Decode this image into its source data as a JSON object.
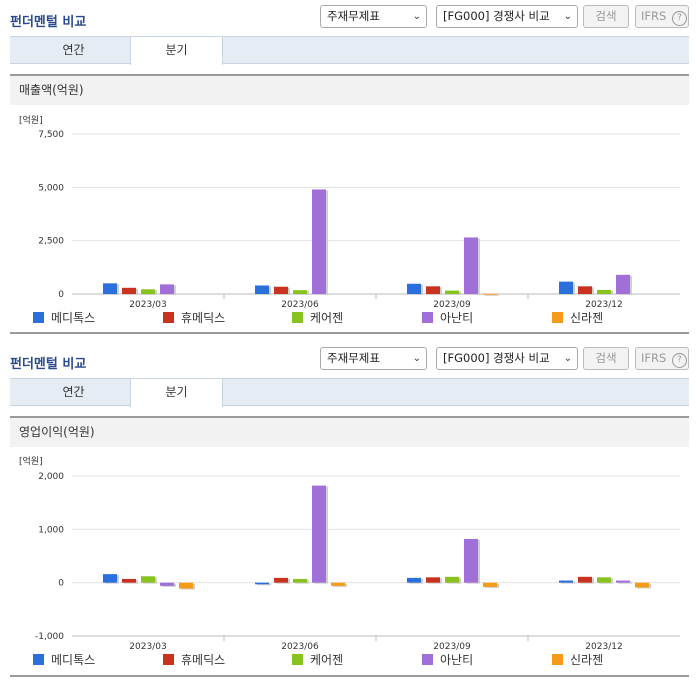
{
  "colors": {
    "series": [
      "#2a6fdb",
      "#c8321e",
      "#87c21f",
      "#a06fd8",
      "#f39c1a"
    ],
    "grid": "#e3e3e3",
    "title": "#2b4a8b"
  },
  "panels": [
    {
      "title": "펀더멘털 비교",
      "select1": "주재무제표",
      "select2": "[FG000] 경쟁사 비교",
      "search_button": "검색",
      "ifrs_button": "IFRS",
      "help_icon": "?",
      "tabs": [
        "연간",
        "분기"
      ],
      "active_tab": 1,
      "subtitle": "매출액(억원)",
      "unit_label": "[억원]",
      "legend": [
        "메디톡스",
        "휴메딕스",
        "케어젠",
        "아난티",
        "신라젠"
      ]
    },
    {
      "title": "펀더멘털 비교",
      "select1": "주재무제표",
      "select2": "[FG000] 경쟁사 비교",
      "search_button": "검색",
      "ifrs_button": "IFRS",
      "help_icon": "?",
      "tabs": [
        "연간",
        "분기"
      ],
      "active_tab": 1,
      "subtitle": "영업이익(억원)",
      "unit_label": "[억원]",
      "legend": [
        "메디톡스",
        "휴메딕스",
        "케어젠",
        "아난티",
        "신라젠"
      ]
    }
  ],
  "chart_data": [
    {
      "type": "bar",
      "ylabel": "[억원]",
      "ylim": [
        0,
        7500
      ],
      "yticks": [
        0,
        2500,
        5000,
        7500
      ],
      "ytick_labels": [
        "0",
        "2,500",
        "5,000",
        "7,500"
      ],
      "categories": [
        "2023/03",
        "2023/06",
        "2023/09",
        "2023/12"
      ],
      "series": [
        {
          "name": "메디톡스",
          "values": [
            500,
            400,
            480,
            580
          ]
        },
        {
          "name": "휴메딕스",
          "values": [
            290,
            340,
            360,
            360
          ]
        },
        {
          "name": "케어젠",
          "values": [
            220,
            180,
            160,
            190
          ]
        },
        {
          "name": "아난티",
          "values": [
            450,
            4900,
            2650,
            900
          ]
        },
        {
          "name": "신라젠",
          "values": [
            0,
            0,
            10,
            0
          ]
        }
      ],
      "legend_position": "bottom"
    },
    {
      "type": "bar",
      "ylabel": "[억원]",
      "ylim": [
        -1000,
        2000
      ],
      "yticks": [
        -1000,
        0,
        1000,
        2000
      ],
      "ytick_labels": [
        "-1,000",
        "0",
        "1,000",
        "2,000"
      ],
      "categories": [
        "2023/03",
        "2023/06",
        "2023/09",
        "2023/12"
      ],
      "series": [
        {
          "name": "메디톡스",
          "values": [
            160,
            -30,
            90,
            40
          ]
        },
        {
          "name": "휴메딕스",
          "values": [
            70,
            90,
            100,
            110
          ]
        },
        {
          "name": "케어젠",
          "values": [
            120,
            70,
            110,
            100
          ]
        },
        {
          "name": "아난티",
          "values": [
            -60,
            1820,
            820,
            40
          ]
        },
        {
          "name": "신라젠",
          "values": [
            -110,
            -60,
            -80,
            -90
          ]
        }
      ],
      "legend_position": "bottom"
    }
  ]
}
